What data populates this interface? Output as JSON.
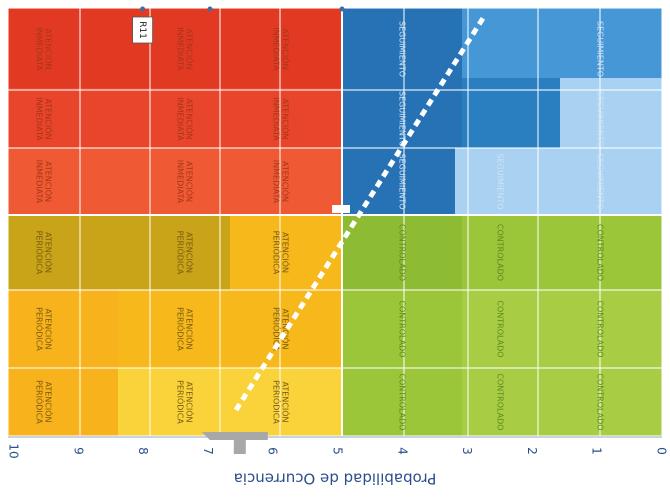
{
  "chart_data": {
    "type": "heatmap",
    "title": "",
    "axis_label": "Probabilidad de Ocurrencia",
    "axis_ticks": [
      "10",
      "9",
      "8",
      "7",
      "6",
      "5",
      "4",
      "3",
      "2",
      "1",
      "0"
    ],
    "axis_range": [
      0,
      10
    ],
    "grid": true,
    "legend": "none",
    "zones": [
      {
        "name": "ATENCIÓN INMEDIATA",
        "color": "#e8452a"
      },
      {
        "name": "ATENCIÓN PERIÓDICA",
        "color": "#f6b81a"
      },
      {
        "name": "SEGUIMIENTO",
        "color": "#2a7fc1"
      },
      {
        "name": "CONTROLADO",
        "color": "#9cc63a"
      }
    ],
    "cell_labels": {
      "atencion_inmediata": "ATENCIÓN INMEDIATA",
      "atencion_periodica": "ATENCIÓN PERIÓDICA",
      "seguimiento": "SEGUIMIENTO",
      "controlado": "CONTROLADO"
    },
    "cells": [
      {
        "col": 0,
        "row": 0,
        "zone": "atencion_inmediata"
      },
      {
        "col": 0,
        "row": 1,
        "zone": "atencion_inmediata"
      },
      {
        "col": 0,
        "row": 2,
        "zone": "atencion_inmediata"
      },
      {
        "col": 1,
        "row": 0,
        "zone": "atencion_inmediata"
      },
      {
        "col": 1,
        "row": 1,
        "zone": "atencion_inmediata"
      },
      {
        "col": 1,
        "row": 2,
        "zone": "atencion_inmediata"
      },
      {
        "col": 2,
        "row": 0,
        "zone": "atencion_inmediata"
      },
      {
        "col": 2,
        "row": 1,
        "zone": "atencion_inmediata"
      },
      {
        "col": 2,
        "row": 2,
        "zone": "atencion_inmediata"
      },
      {
        "col": 0,
        "row": 3,
        "zone": "atencion_periodica"
      },
      {
        "col": 0,
        "row": 4,
        "zone": "atencion_periodica"
      },
      {
        "col": 0,
        "row": 5,
        "zone": "atencion_periodica"
      },
      {
        "col": 1,
        "row": 3,
        "zone": "atencion_periodica"
      },
      {
        "col": 1,
        "row": 4,
        "zone": "atencion_periodica"
      },
      {
        "col": 1,
        "row": 5,
        "zone": "atencion_periodica"
      },
      {
        "col": 2,
        "row": 3,
        "zone": "atencion_periodica"
      },
      {
        "col": 2,
        "row": 4,
        "zone": "atencion_periodica"
      },
      {
        "col": 2,
        "row": 5,
        "zone": "atencion_periodica"
      },
      {
        "col": 3,
        "row": 0,
        "zone": "seguimiento"
      },
      {
        "col": 3,
        "row": 1,
        "zone": "seguimiento"
      },
      {
        "col": 3,
        "row": 2,
        "zone": "seguimiento"
      },
      {
        "col": 4,
        "row": 2,
        "zone": "seguimiento"
      },
      {
        "col": 5,
        "row": 0,
        "zone": "seguimiento"
      },
      {
        "col": 5,
        "row": 1,
        "zone": "seguimiento"
      },
      {
        "col": 5,
        "row": 2,
        "zone": "seguimiento"
      },
      {
        "col": 3,
        "row": 3,
        "zone": "controlado"
      },
      {
        "col": 3,
        "row": 4,
        "zone": "controlado"
      },
      {
        "col": 3,
        "row": 5,
        "zone": "controlado"
      },
      {
        "col": 4,
        "row": 3,
        "zone": "controlado"
      },
      {
        "col": 4,
        "row": 4,
        "zone": "controlado"
      },
      {
        "col": 4,
        "row": 5,
        "zone": "controlado"
      },
      {
        "col": 5,
        "row": 3,
        "zone": "controlado"
      },
      {
        "col": 5,
        "row": 4,
        "zone": "controlado"
      },
      {
        "col": 5,
        "row": 5,
        "zone": "controlado"
      }
    ],
    "points": [
      {
        "label": "R11",
        "value": 8
      }
    ]
  }
}
